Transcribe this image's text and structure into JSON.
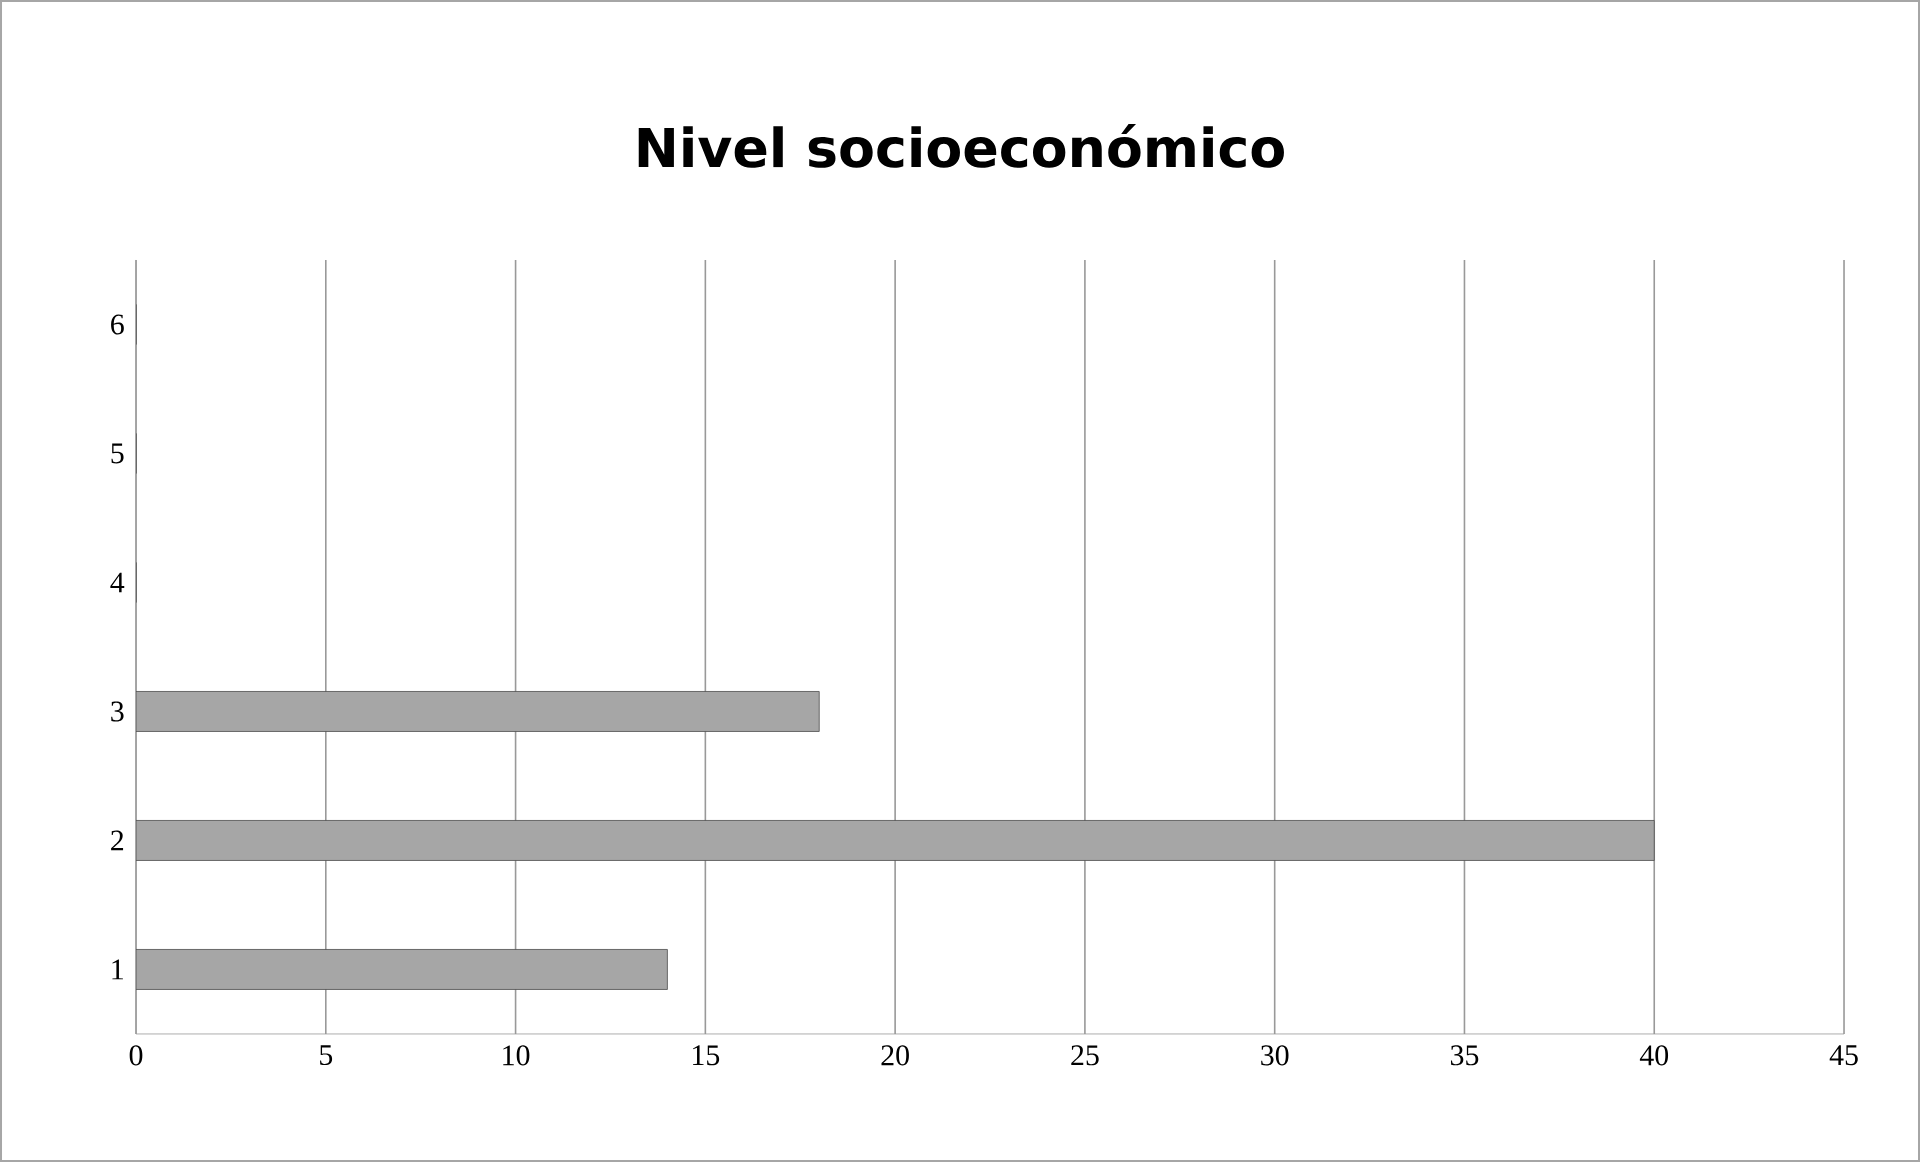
{
  "chart_data": {
    "type": "bar",
    "orientation": "horizontal",
    "title": "Nivel socioeconómico",
    "categories": [
      "6",
      "5",
      "4",
      "3",
      "2",
      "1"
    ],
    "values": [
      0,
      0,
      0,
      18,
      40,
      14
    ],
    "color": "#a6a6a6",
    "xlim": [
      0,
      45
    ],
    "xticks": [
      0,
      5,
      10,
      15,
      20,
      25,
      30,
      35,
      40,
      45
    ],
    "grid": "x"
  }
}
